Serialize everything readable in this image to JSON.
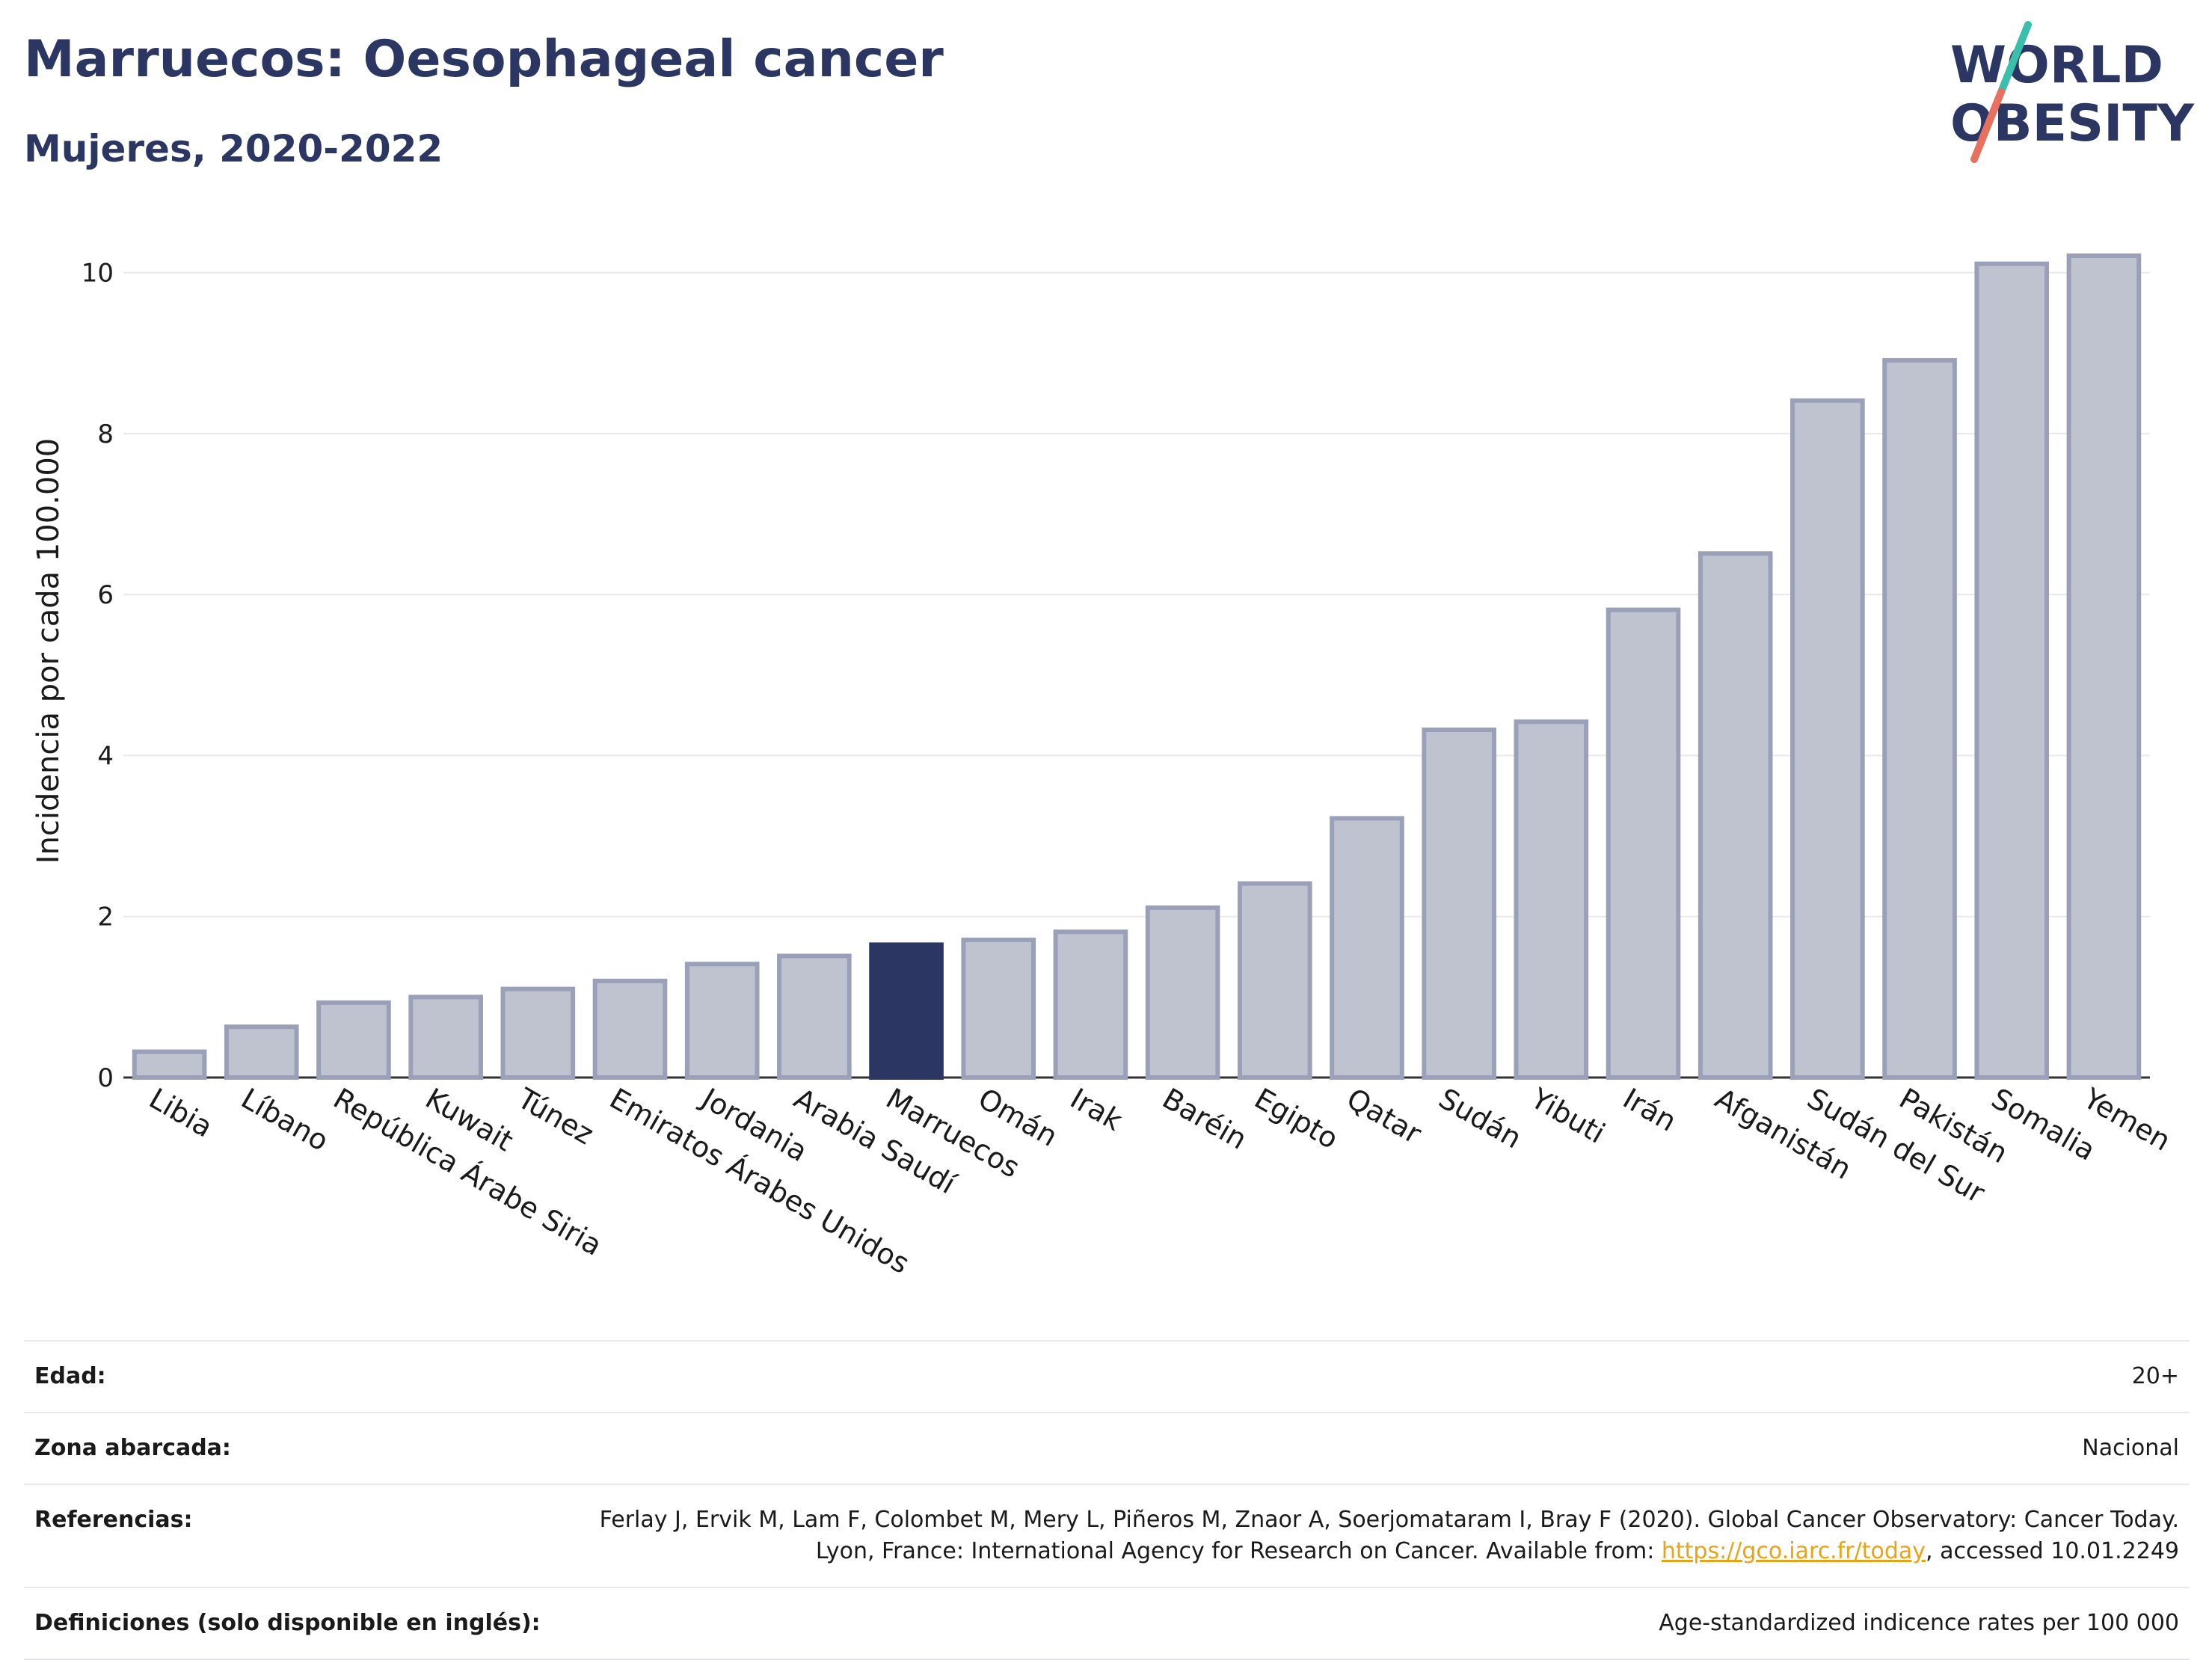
{
  "header": {
    "title": "Marruecos: Oesophageal cancer",
    "subtitle": "Mujeres, 2020-2022"
  },
  "logo": {
    "line1": "WORLD",
    "line2": "OBESITY",
    "colors": {
      "text": "#2b3663",
      "slash_teal": "#3bbfad",
      "slash_coral": "#e8705e"
    }
  },
  "chart_data": {
    "type": "bar",
    "ylabel": "Incidencia por cada 100.000",
    "ylim": [
      0,
      10.6
    ],
    "yticks": [
      0,
      2,
      4,
      6,
      8,
      10
    ],
    "grid": true,
    "highlight": "Marruecos",
    "colors": {
      "bar": "#bfc3d0",
      "bar_edge": "#9aa0b8",
      "highlight": "#2b3663",
      "grid": "#e8e8ee"
    },
    "categories": [
      "Libia",
      "Líbano",
      "República Árabe Siria",
      "Kuwait",
      "Túnez",
      "Emiratos Árabes Unidos",
      "Jordania",
      "Arabia Saudí",
      "Marruecos",
      "Omán",
      "Irak",
      "Baréin",
      "Egipto",
      "Qatar",
      "Sudán",
      "Yibuti",
      "Irán",
      "Afganistán",
      "Sudán del Sur",
      "Pakistán",
      "Somalia",
      "Yemen"
    ],
    "values": [
      0.32,
      0.63,
      0.93,
      1.0,
      1.1,
      1.2,
      1.41,
      1.51,
      1.65,
      1.71,
      1.81,
      2.11,
      2.41,
      3.22,
      4.32,
      4.42,
      5.81,
      6.51,
      8.41,
      8.91,
      10.11,
      10.21
    ]
  },
  "info": {
    "rows": [
      {
        "label": "Edad:",
        "value": "20+"
      },
      {
        "label": "Zona abarcada:",
        "value": "Nacional"
      },
      {
        "label": "Referencias:",
        "value_before": "Ferlay J, Ervik M, Lam F, Colombet M, Mery L, Piñeros M, Znaor A, Soerjomataram I, Bray F (2020). Global Cancer Observatory: Cancer Today. Lyon, France: International Agency for Research on Cancer. Available from: ",
        "link": "https://gco.iarc.fr/today",
        "value_after": ", accessed 10.01.2249"
      },
      {
        "label": "Definiciones (solo disponible en inglés):",
        "value": "Age-standardized indicence rates per 100 000"
      }
    ]
  }
}
